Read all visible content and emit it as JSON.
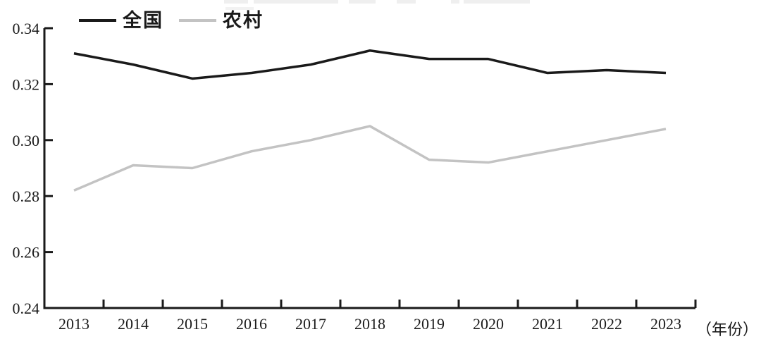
{
  "chart": {
    "background": "#ffffff",
    "axis_color": "#1a1a1a",
    "x_unit_label": "（年份）",
    "y_tick_labels": [
      "0.24",
      "0.26",
      "0.28",
      "0.30",
      "0.32",
      "0.34"
    ]
  },
  "legend": {
    "items": [
      {
        "label": "全国",
        "color": "#1a1a1a"
      },
      {
        "label": "农村",
        "color": "#c3c3c3"
      }
    ]
  },
  "chart_data": {
    "type": "line",
    "categories": [
      "2013",
      "2014",
      "2015",
      "2016",
      "2017",
      "2018",
      "2019",
      "2020",
      "2021",
      "2022",
      "2023"
    ],
    "series": [
      {
        "name": "全国",
        "color": "#1a1a1a",
        "values": [
          0.331,
          0.327,
          0.322,
          0.324,
          0.327,
          0.332,
          0.329,
          0.329,
          0.324,
          0.325,
          0.324
        ]
      },
      {
        "name": "农村",
        "color": "#c3c3c3",
        "values": [
          0.282,
          0.291,
          0.29,
          0.296,
          0.3,
          0.305,
          0.293,
          0.292,
          0.296,
          0.3,
          0.304
        ]
      }
    ],
    "title": "",
    "xlabel": "（年份）",
    "ylabel": "",
    "ylim": [
      0.24,
      0.34
    ],
    "y_tick_step": 0.02,
    "grid": false,
    "legend_position": "top-left"
  }
}
